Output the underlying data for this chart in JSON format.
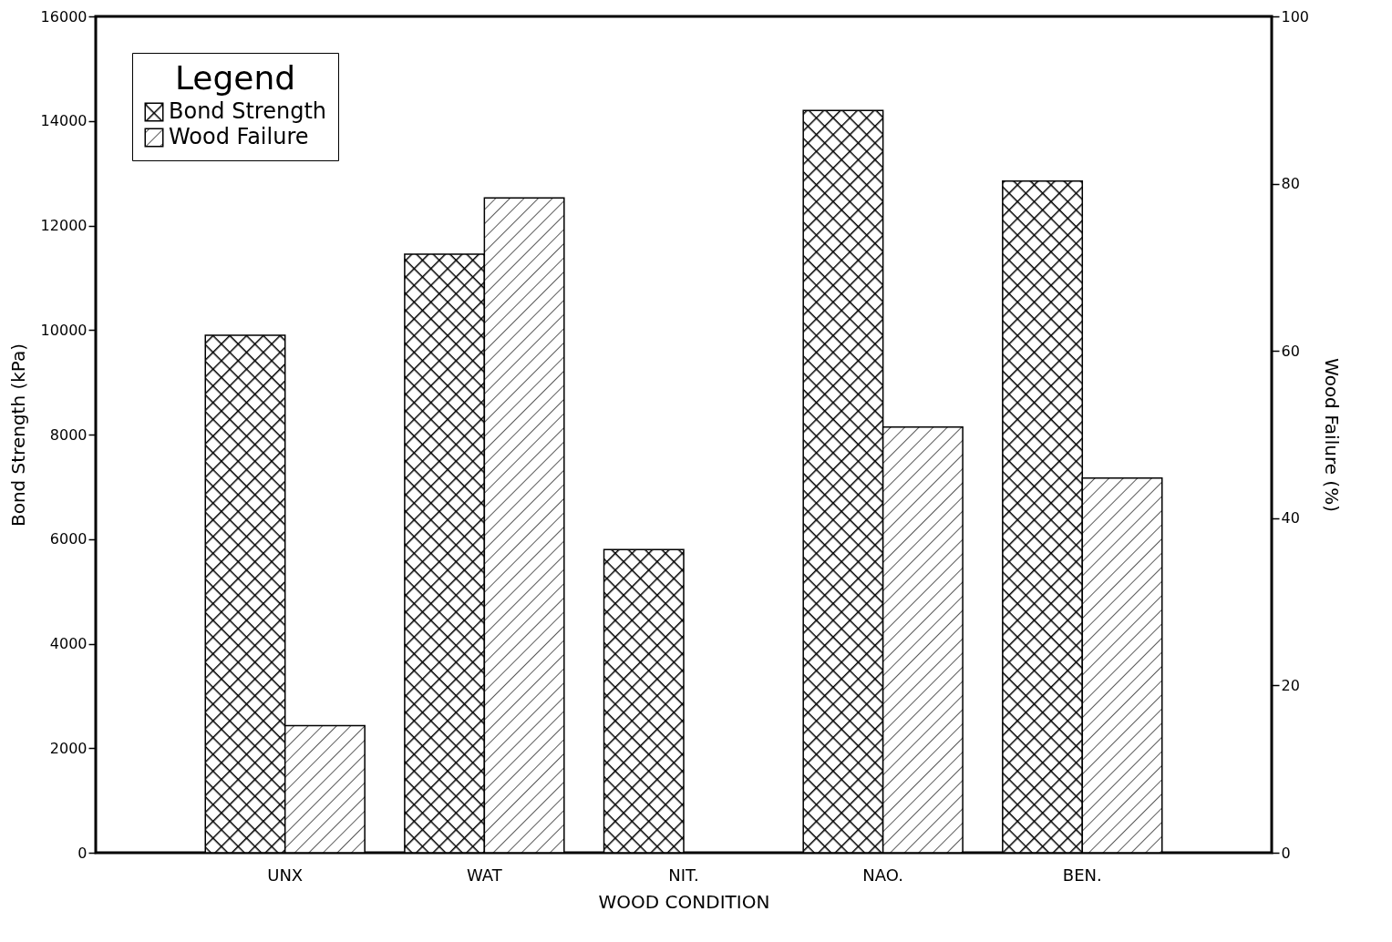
{
  "chart_data": {
    "type": "bar",
    "xlabel": "WOOD CONDITION",
    "ylabel": "Bond Strength  (kPa)",
    "y2label": "Wood Failure  (%)",
    "legend_title": "Legend",
    "categories": [
      "UNX",
      "WAT",
      "NIT.",
      "NAO.",
      "BEN."
    ],
    "series": [
      {
        "name": "Bond Strength",
        "color": "#000000",
        "values": [
          9900,
          11450,
          5800,
          14200,
          12850
        ]
      },
      {
        "name": "Wood Failure",
        "color": "#000000",
        "axis": "y2",
        "values": [
          15.2,
          78.3,
          0,
          50.9,
          44.8
        ]
      }
    ],
    "ylim": [
      0,
      16000
    ],
    "yticks": [
      0,
      2000,
      4000,
      6000,
      8000,
      10000,
      12000,
      14000,
      16000
    ],
    "y2lim": [
      0,
      100
    ],
    "y2ticks": [
      0,
      20,
      40,
      60,
      80,
      100
    ],
    "legend": "top left",
    "grid": false
  }
}
